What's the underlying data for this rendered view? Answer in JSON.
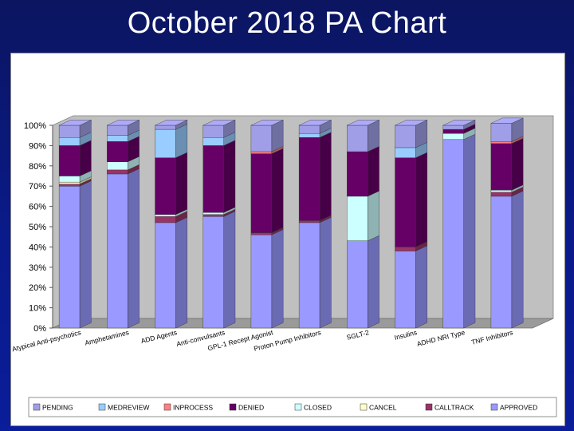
{
  "slide": {
    "title": "October 2018 PA Chart"
  },
  "chart_data": {
    "type": "bar",
    "stacked": true,
    "percent": true,
    "title": "",
    "xlabel": "",
    "ylabel": "",
    "ylim": [
      0,
      100
    ],
    "yticks": [
      "0%",
      "10%",
      "20%",
      "30%",
      "40%",
      "50%",
      "60%",
      "70%",
      "80%",
      "90%",
      "100%"
    ],
    "categories": [
      "Atypical Anti-psychotics",
      "Amphetamines",
      "ADD Agents",
      "Anti-convulsants",
      "GPL-1 Recept Agonist",
      "Proton Pump Inhibitors",
      "SGLT-2",
      "Insulins",
      "ADHD NRI Type",
      "TNF Inhibitors"
    ],
    "series": [
      {
        "name": "APPROVED",
        "color": "#9999ff",
        "values": [
          70,
          76,
          52,
          55,
          46,
          52,
          43,
          38,
          93,
          65
        ]
      },
      {
        "name": "CALLTRACK",
        "color": "#993366",
        "values": [
          1,
          2,
          3,
          1,
          1,
          1,
          0,
          2,
          0,
          2
        ]
      },
      {
        "name": "CANCEL",
        "color": "#ffffcc",
        "values": [
          1,
          0,
          0,
          0,
          0,
          0,
          0,
          0,
          0,
          0
        ]
      },
      {
        "name": "CLOSED",
        "color": "#ccffff",
        "values": [
          3,
          4,
          1,
          1,
          0,
          0,
          22,
          0,
          3,
          1
        ]
      },
      {
        "name": "DENIED",
        "color": "#660066",
        "values": [
          15,
          10,
          28,
          33,
          39,
          41,
          22,
          44,
          2,
          23
        ]
      },
      {
        "name": "INPROCESS",
        "color": "#ff8080",
        "values": [
          0,
          0,
          0,
          0,
          1,
          0,
          0,
          0,
          0,
          1
        ]
      },
      {
        "name": "MEDREVIEW",
        "color": "#99ccff",
        "values": [
          4,
          3,
          14,
          4,
          0,
          2,
          0,
          5,
          0,
          0
        ]
      },
      {
        "name": "PENDING",
        "color": "#a09ee6",
        "values": [
          6,
          5,
          2,
          6,
          13,
          4,
          13,
          11,
          2,
          9
        ]
      }
    ],
    "legend": {
      "position": "bottom",
      "order": [
        "PENDING",
        "MEDREVIEW",
        "INPROCESS",
        "DENIED",
        "CLOSED",
        "CANCEL",
        "CALLTRACK",
        "APPROVED"
      ]
    },
    "grid": false
  }
}
